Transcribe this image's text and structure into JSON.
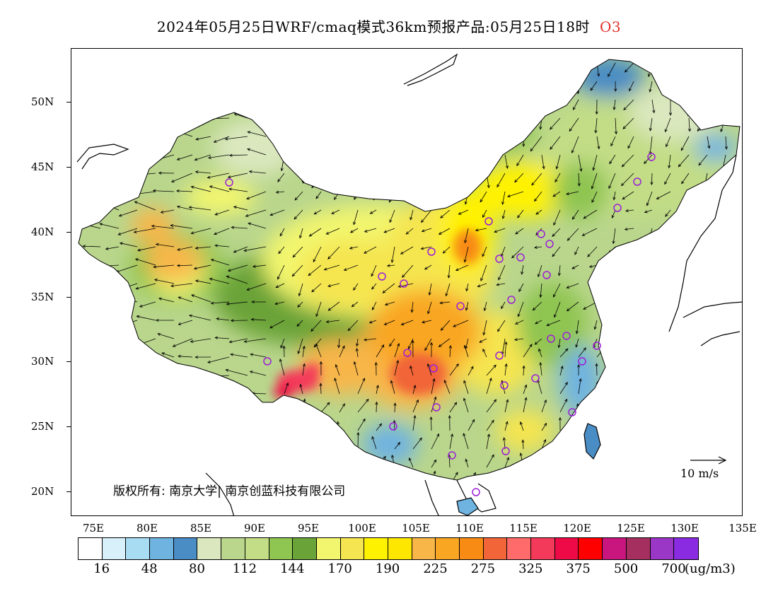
{
  "title": {
    "text": "2024年05月25日WRF/cmaq模式36km预报产品:05月25日18时",
    "species": "O3",
    "species_color": "#e0302a"
  },
  "lat_labels": [
    "50N",
    "45N",
    "40N",
    "35N",
    "30N",
    "25N",
    "20N"
  ],
  "lon_labels": [
    "75E",
    "80E",
    "85E",
    "90E",
    "95E",
    "100E",
    "105E",
    "110E",
    "115E",
    "120E",
    "125E",
    "130E",
    "135E"
  ],
  "copyright": "版权所有: 南京大学| 南京创蓝科技有限公司",
  "reference_vector": {
    "label": "10 m/s"
  },
  "colorbar": {
    "colors": [
      "#ffffff",
      "#d8f0fa",
      "#a8dcf2",
      "#6fb3e0",
      "#4a8cc4",
      "#dbe8bf",
      "#b9d68c",
      "#c2dd86",
      "#8fc551",
      "#6aa338",
      "#f2f66e",
      "#f5e550",
      "#fff200",
      "#fde600",
      "#f8b648",
      "#f9a623",
      "#f88b14",
      "#f16538",
      "#ff6a6a",
      "#f43a5a",
      "#ee0a47",
      "#ff0000",
      "#c9157e",
      "#a53060",
      "#9b37c6",
      "#8a2be2"
    ],
    "labels": [
      "16",
      "48",
      "80",
      "112",
      "144",
      "170",
      "190",
      "225",
      "275",
      "325",
      "375",
      "500",
      "700"
    ],
    "unit": "(ug/m3)"
  },
  "city_markers_color": "#9b1fd6"
}
